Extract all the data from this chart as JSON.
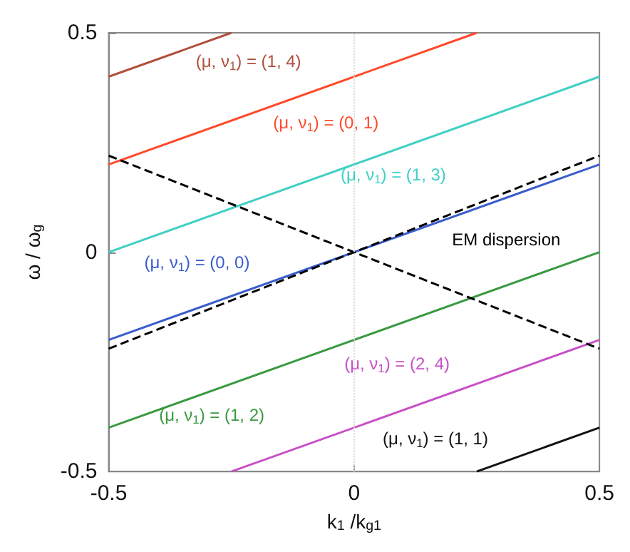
{
  "chart_data": {
    "type": "line",
    "xlabel": "k$_{1}$ /k$_{g1}$",
    "ylabel": "ω / ω$_{g}$",
    "xlim": [
      -0.5,
      0.5
    ],
    "xticks": [
      -0.5,
      0,
      0.5
    ],
    "ylim": [
      -0.5,
      0.5
    ],
    "yticks": [
      -0.5,
      0,
      0.5
    ],
    "grid": false,
    "marker": "none",
    "series": [
      {
        "name": "(μ, ν$_{1}$) = (1, 4)",
        "color": "#b0503a",
        "x": [
          -0.5,
          -0.25
        ],
        "values": [
          0.4,
          0.5
        ]
      },
      {
        "name": "(μ, ν$_{1}$) = (0, 1)",
        "color": "#ff4a2a",
        "x": [
          -0.5,
          0.25
        ],
        "values": [
          0.2,
          0.5
        ]
      },
      {
        "name": "(μ, ν$_{1}$) = (1, 3)",
        "color": "#40d0c4",
        "x": [
          -0.5,
          0.5
        ],
        "values": [
          0.0,
          0.4
        ]
      },
      {
        "name": "(μ, ν$_{1}$) = (0, 0)",
        "color": "#3a5ccc",
        "x": [
          -0.5,
          0.5
        ],
        "values": [
          -0.2,
          0.2
        ]
      },
      {
        "name": "(μ, ν$_{1}$) = (2, 4)",
        "color": "#c850c8",
        "x": [
          -0.25,
          0.5
        ],
        "values": [
          -0.5,
          -0.2
        ]
      },
      {
        "name": "(μ, ν$_{1}$) = (1, 2)",
        "color": "#3a9a40",
        "x": [
          -0.5,
          0.5
        ],
        "values": [
          -0.4,
          0.0
        ]
      },
      {
        "name": "(μ, ν$_{1}$) = (1, 1)",
        "color": "#111111",
        "x": [
          0.25,
          0.5
        ],
        "values": [
          -0.5,
          -0.4
        ]
      },
      {
        "name": "EM dispersion",
        "color": "#000000",
        "line_style": "dashed",
        "x": [
          -0.5,
          0.5
        ],
        "values": [
          0.22,
          -0.22
        ]
      },
      {
        "color": "#000000",
        "line_style": "dashed",
        "x": [
          -0.5,
          0.5
        ],
        "values": [
          -0.22,
          0.22
        ]
      }
    ],
    "ref_lines": [
      {
        "axis": "x",
        "value": 0,
        "color": "#d8d8d8",
        "line_style": "dotted"
      }
    ]
  }
}
